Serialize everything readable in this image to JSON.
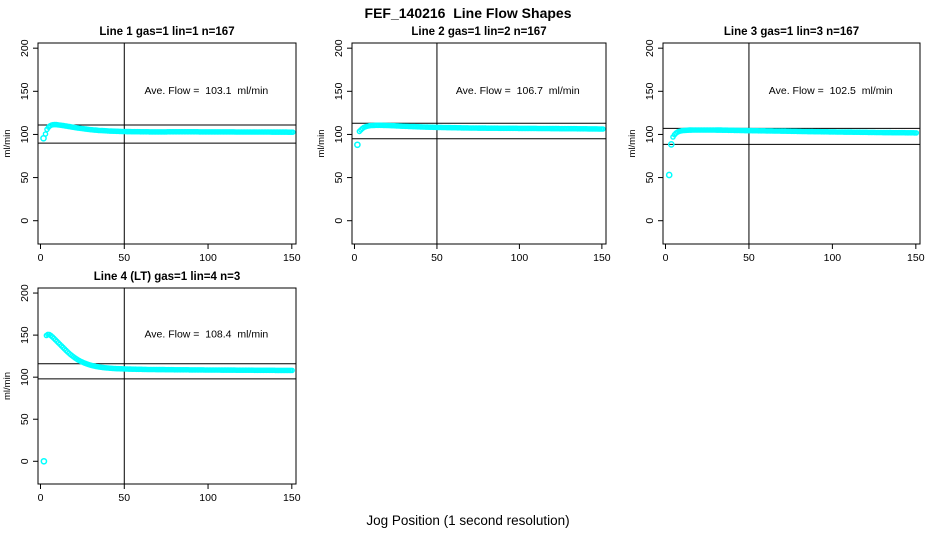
{
  "figure": {
    "title": "FEF_140216  Line Flow Shapes",
    "xlabel": "Jog Position (1 second resolution)",
    "ylabel": "ml/min"
  },
  "chart_data": {
    "type": "scatter",
    "title": "FEF_140216  Line Flow Shapes",
    "xlabel": "Jog Position (1 second resolution)",
    "ylabel": "ml/min",
    "x_ticks": [
      0,
      50,
      100,
      150
    ],
    "y_ticks": [
      0,
      50,
      100,
      150,
      200
    ],
    "xlim": [
      0,
      150
    ],
    "ylim": [
      0,
      200
    ],
    "grid": false,
    "point_color": "#00FFFF",
    "line_color": "#000000",
    "point_step": 0.9,
    "panels": [
      {
        "title": "Line 1 gas=1 lin=1 n=167",
        "annotation": "Ave. Flow =  103.1  ml/min",
        "ave_flow": 103.1,
        "n": 167,
        "ref_lines_y": [
          111,
          90
        ],
        "ref_line_x": 50,
        "outliers": [
          [
            1.8,
            95.5
          ]
        ],
        "curve_keypoints": [
          [
            3,
            100.5
          ],
          [
            4,
            106.5
          ],
          [
            5,
            109
          ],
          [
            6,
            110.5
          ],
          [
            7,
            111.3
          ],
          [
            9,
            111.5
          ],
          [
            11,
            111
          ],
          [
            13,
            110.5
          ],
          [
            16,
            109.5
          ],
          [
            19,
            108.5
          ],
          [
            22,
            107.5
          ],
          [
            26,
            106.5
          ],
          [
            30,
            105.5
          ],
          [
            34,
            104.8
          ],
          [
            38,
            104.3
          ],
          [
            43,
            103.8
          ],
          [
            48,
            103.5
          ],
          [
            55,
            103.2
          ],
          [
            65,
            103
          ],
          [
            75,
            103
          ],
          [
            85,
            103.1
          ],
          [
            95,
            103
          ],
          [
            105,
            102.9
          ],
          [
            115,
            102.9
          ],
          [
            125,
            102.8
          ],
          [
            135,
            102.8
          ],
          [
            145,
            102.7
          ],
          [
            151,
            102.6
          ]
        ]
      },
      {
        "title": "Line 2 gas=1 lin=2 n=167",
        "annotation": "Ave. Flow =  106.7  ml/min",
        "ave_flow": 106.7,
        "n": 167,
        "ref_lines_y": [
          113,
          95
        ],
        "ref_line_x": 50,
        "outliers": [
          [
            1.8,
            88
          ]
        ],
        "curve_keypoints": [
          [
            3,
            103.5
          ],
          [
            4,
            105.5
          ],
          [
            5,
            107.3
          ],
          [
            6,
            108.5
          ],
          [
            8,
            109.7
          ],
          [
            10,
            110.3
          ],
          [
            13,
            110.6
          ],
          [
            16,
            110.6
          ],
          [
            20,
            110.4
          ],
          [
            24,
            110.1
          ],
          [
            28,
            109.7
          ],
          [
            33,
            109.3
          ],
          [
            38,
            108.9
          ],
          [
            44,
            108.5
          ],
          [
            50,
            108.2
          ],
          [
            58,
            107.9
          ],
          [
            66,
            107.6
          ],
          [
            75,
            107.4
          ],
          [
            85,
            107.2
          ],
          [
            95,
            107.1
          ],
          [
            105,
            107
          ],
          [
            115,
            106.9
          ],
          [
            125,
            106.7
          ],
          [
            135,
            106.6
          ],
          [
            145,
            106.4
          ],
          [
            151,
            106.3
          ]
        ]
      },
      {
        "title": "Line 3 gas=1 lin=3 n=167",
        "annotation": "Ave. Flow =  102.5  ml/min",
        "ave_flow": 102.5,
        "n": 167,
        "ref_lines_y": [
          107,
          88.5
        ],
        "ref_line_x": 50,
        "outliers": [
          [
            2.2,
            53
          ],
          [
            3.5,
            88.5
          ]
        ],
        "curve_keypoints": [
          [
            4.5,
            97
          ],
          [
            5.5,
            100
          ],
          [
            6.5,
            102
          ],
          [
            8,
            103.5
          ],
          [
            10,
            104.4
          ],
          [
            13,
            104.9
          ],
          [
            16,
            105.1
          ],
          [
            20,
            105.2
          ],
          [
            25,
            105.2
          ],
          [
            30,
            105.1
          ],
          [
            36,
            104.9
          ],
          [
            42,
            104.7
          ],
          [
            48,
            104.5
          ],
          [
            55,
            104.3
          ],
          [
            62,
            104.1
          ],
          [
            70,
            103.9
          ],
          [
            78,
            103.6
          ],
          [
            86,
            103.3
          ],
          [
            94,
            103.1
          ],
          [
            102,
            102.9
          ],
          [
            110,
            102.7
          ],
          [
            118,
            102.5
          ],
          [
            126,
            102.3
          ],
          [
            134,
            102.1
          ],
          [
            142,
            102
          ],
          [
            151,
            101.8
          ]
        ]
      },
      {
        "title": "Line 4 (LT) gas=1 lin=4 n=3",
        "annotation": "Ave. Flow =  108.4  ml/min",
        "ave_flow": 108.4,
        "n": 3,
        "ref_lines_y": [
          116,
          98
        ],
        "ref_line_x": 50,
        "outliers": [
          [
            2,
            0
          ]
        ],
        "curve_keypoints": [
          [
            3.5,
            149.5
          ],
          [
            4.5,
            151
          ],
          [
            5.5,
            150.5
          ],
          [
            6.5,
            149
          ],
          [
            7.5,
            147.2
          ],
          [
            8.5,
            145.2
          ],
          [
            10,
            142.3
          ],
          [
            12,
            138.2
          ],
          [
            14,
            134.2
          ],
          [
            16,
            130.3
          ],
          [
            18,
            126.8
          ],
          [
            20,
            123.7
          ],
          [
            22,
            121
          ],
          [
            24,
            118.8
          ],
          [
            26,
            117
          ],
          [
            28,
            115.5
          ],
          [
            30,
            114.2
          ],
          [
            33,
            112.8
          ],
          [
            36,
            111.8
          ],
          [
            39,
            111.1
          ],
          [
            42,
            110.6
          ],
          [
            46,
            110.1
          ],
          [
            50,
            109.8
          ],
          [
            55,
            109.5
          ],
          [
            60,
            109.3
          ],
          [
            66,
            109.1
          ],
          [
            72,
            109
          ],
          [
            80,
            108.8
          ],
          [
            88,
            108.7
          ],
          [
            96,
            108.6
          ],
          [
            104,
            108.5
          ],
          [
            112,
            108.4
          ],
          [
            120,
            108.3
          ],
          [
            130,
            108.2
          ],
          [
            140,
            108.1
          ],
          [
            151,
            108
          ]
        ]
      }
    ]
  }
}
